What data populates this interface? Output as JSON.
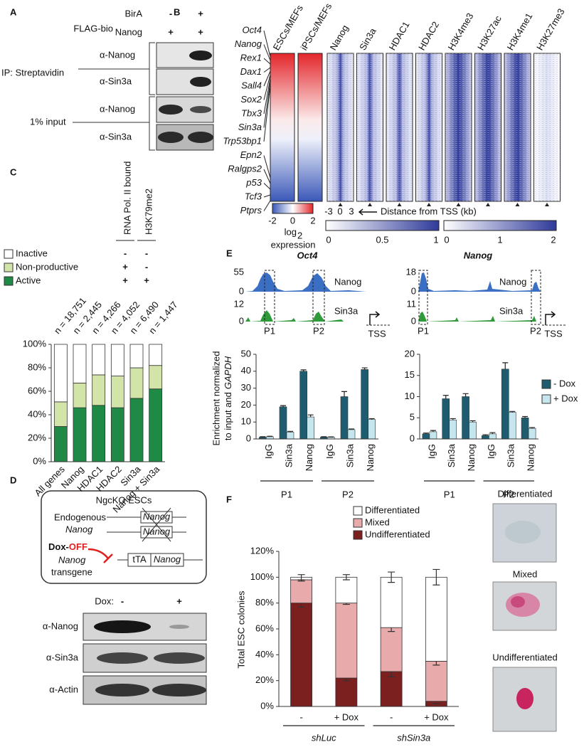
{
  "panel_labels": [
    "A",
    "B",
    "C",
    "D",
    "E",
    "F"
  ],
  "panel_a": {
    "row_labels": [
      "BirA",
      "Nanog"
    ],
    "tag": "FLAG-bio",
    "lanes": [
      [
        "-",
        "+"
      ],
      [
        "+",
        "+"
      ]
    ],
    "groups": [
      "IP: Streptavidin",
      "1% input"
    ],
    "blots": [
      "α-Nanog",
      "α-Sin3a",
      "α-Nanog",
      "α-Sin3a"
    ]
  },
  "panel_b": {
    "genes_up": [
      "Oct4",
      "Nanog",
      "Rex1",
      "Dax1",
      "Sall4",
      "Sox2",
      "Tbx3",
      "Sin3a",
      "Trp53bp1"
    ],
    "genes_down": [
      "Epn2",
      "Ralgps2",
      "p53",
      "Tcf3",
      "Ptprs"
    ],
    "tracks": [
      "ESCs/MEFs",
      "iPSCs/MEFs",
      "Nanog",
      "Sin3a",
      "HDAC1",
      "HDAC2",
      "H3K4me3",
      "H3K27ac",
      "H3K4me1",
      "H3K27me3"
    ],
    "expression_ticks": [
      -2,
      0,
      2
    ],
    "expression_label": "log",
    "expression_subscript": "2",
    "expression_label_2": "expression",
    "distance_ticks": [
      -3,
      0,
      3
    ],
    "distance_label": "Distance from TSS (kb)",
    "scale_ticks": [
      [
        0,
        0.5,
        1
      ],
      [
        0,
        1,
        2
      ]
    ]
  },
  "panel_d": {
    "title": "NgcKO ESCs",
    "endogenous": [
      "Endogenous",
      "Nanog"
    ],
    "gene": "Nanog",
    "transgene": [
      "Dox-",
      "OFF",
      "Nanog",
      "transgene"
    ],
    "cassette": [
      "tTA",
      "Nanog"
    ],
    "dox_label": "Dox:",
    "lanes": [
      "-",
      "+"
    ],
    "blots": [
      "α-Nanog",
      "α-Sin3a",
      "α-Actin"
    ]
  },
  "panel_f": {
    "images": [
      "Differentiated",
      "Mixed",
      "Undifferentiated"
    ]
  },
  "chart_data": [
    {
      "type": "stacked_bar",
      "categories": [
        "All genes",
        "Nanog",
        "HDAC1",
        "HDAC2",
        "Sin3a",
        "Nanog + Sin3a"
      ],
      "annotations": [
        "n = 18,751",
        "n = 2,445",
        "n = 4,266",
        "n = 4,052",
        "n = 6,490",
        "n = 1,447"
      ],
      "column_headers": [
        "RNA Pol. II bound",
        "H3K79me2"
      ],
      "series": [
        {
          "name": "Active",
          "color": "#1e8a45",
          "values": [
            30,
            46,
            48,
            46,
            54,
            62
          ],
          "marks": [
            "+",
            "+"
          ]
        },
        {
          "name": "Non-productive",
          "color": "#d3e4a9",
          "values": [
            21,
            21,
            26,
            27,
            26,
            20
          ],
          "marks": [
            "+",
            "-"
          ]
        },
        {
          "name": "Inactive",
          "color": "#ffffff",
          "values": [
            49,
            33,
            26,
            27,
            20,
            18
          ],
          "marks": [
            "-",
            "-"
          ]
        }
      ],
      "ylim": [
        0,
        100
      ],
      "yticks": [
        {
          "value": 0,
          "label": "0%"
        },
        {
          "value": 20,
          "label": "20%"
        },
        {
          "value": 40,
          "label": "40%"
        },
        {
          "value": 60,
          "label": "60%"
        },
        {
          "value": 80,
          "label": "80%"
        },
        {
          "value": 100,
          "label": "100%"
        }
      ]
    },
    {
      "type": "grouped_bar",
      "title": "Oct4",
      "tracks": [
        {
          "name": "Nanog",
          "color": "#3b6fc4",
          "max": 55,
          "min": 0
        },
        {
          "name": "Sin3a",
          "color": "#2f9a3a",
          "max": 12,
          "min": 0
        }
      ],
      "peaks": [
        "P1",
        "P2"
      ],
      "tss": "TSS",
      "ylabel": [
        "Enrichment normalized",
        "to input and"
      ],
      "ylabel_italic": "GAPDH",
      "categories": [
        "IgG",
        "Sin3a",
        "Nanog",
        "IgG",
        "Sin3a",
        "Nanog"
      ],
      "groups": [
        "P1",
        "P2"
      ],
      "series": [
        {
          "color": "#1f5c70",
          "values": [
            1,
            19,
            40,
            1,
            25,
            41
          ],
          "errors": [
            0.3,
            0.7,
            0.8,
            0.3,
            3,
            1
          ]
        },
        {
          "color": "#c6e6ee",
          "values": [
            1.3,
            4,
            13,
            1,
            5.5,
            11.5
          ],
          "errors": [
            0.3,
            0.5,
            1.2,
            0.2,
            0.4,
            0.5
          ]
        }
      ],
      "ylim": [
        0,
        50
      ],
      "yticks": [
        0,
        10,
        20,
        30,
        40,
        50
      ]
    },
    {
      "type": "grouped_bar",
      "title": "Nanog",
      "tracks": [
        {
          "name": "Nanog",
          "color": "#3b6fc4",
          "max": 18,
          "min": 0
        },
        {
          "name": "Sin3a",
          "color": "#2f9a3a",
          "max": 11,
          "min": 0
        }
      ],
      "peaks": [
        "P1",
        "P2"
      ],
      "tss": "TSS",
      "categories": [
        "IgG",
        "Sin3a",
        "Nanog",
        "IgG",
        "Sin3a",
        "Nanog"
      ],
      "groups": [
        "P1",
        "P2"
      ],
      "series": [
        {
          "name": "- Dox",
          "color": "#1f5c70",
          "values": [
            1.2,
            9.5,
            10,
            0.8,
            16.5,
            5
          ],
          "errors": [
            0.2,
            0.8,
            0.7,
            0.2,
            1.5,
            0.3
          ]
        },
        {
          "name": "+ Dox",
          "color": "#c6e6ee",
          "values": [
            1.7,
            4.5,
            4,
            1.2,
            6.3,
            2.5
          ],
          "errors": [
            0.3,
            0.3,
            0.3,
            0.3,
            0.2,
            0.2
          ]
        }
      ],
      "ylim": [
        0,
        20
      ],
      "yticks": [
        0,
        5,
        10,
        15,
        20
      ]
    },
    {
      "type": "stacked_bar",
      "ylabel": "Total ESC colonies",
      "categories": [
        "-",
        "+ Dox",
        "-",
        "+ Dox"
      ],
      "groups": [
        "shLuc",
        "shSin3a"
      ],
      "series": [
        {
          "name": "Undifferentiated",
          "color": "#7b1f1f",
          "values": [
            80,
            22,
            27,
            4
          ],
          "errors": [
            3,
            2,
            4,
            2
          ]
        },
        {
          "name": "Mixed",
          "color": "#e8aaaa",
          "values": [
            18,
            58,
            34,
            31
          ],
          "errors": [
            1,
            1,
            3,
            3
          ]
        },
        {
          "name": "Differentiated",
          "color": "#ffffff",
          "values": [
            2,
            20,
            39,
            65
          ],
          "errors": [
            2,
            2,
            4,
            6
          ]
        }
      ],
      "ylim": [
        0,
        120
      ],
      "yticks": [
        {
          "value": 0,
          "label": "0%"
        },
        {
          "value": 20,
          "label": "20%"
        },
        {
          "value": 40,
          "label": "40%"
        },
        {
          "value": 60,
          "label": "60%"
        },
        {
          "value": 80,
          "label": "80%"
        },
        {
          "value": 100,
          "label": "100%"
        },
        {
          "value": 120,
          "label": "120%"
        }
      ]
    }
  ]
}
